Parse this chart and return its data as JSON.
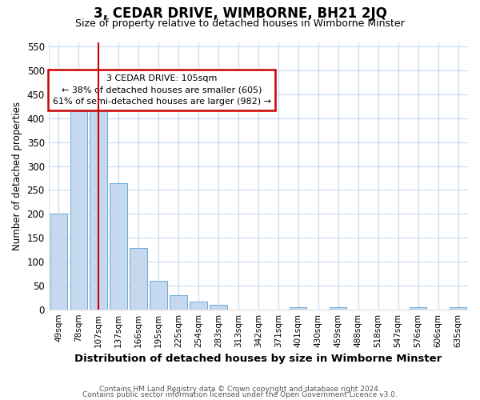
{
  "title": "3, CEDAR DRIVE, WIMBORNE, BH21 2JQ",
  "subtitle": "Size of property relative to detached houses in Wimborne Minster",
  "xlabel": "Distribution of detached houses by size in Wimborne Minster",
  "ylabel": "Number of detached properties",
  "footnote1": "Contains HM Land Registry data © Crown copyright and database right 2024.",
  "footnote2": "Contains public sector information licensed under the Open Government Licence v3.0.",
  "bin_labels": [
    "49sqm",
    "78sqm",
    "107sqm",
    "137sqm",
    "166sqm",
    "195sqm",
    "225sqm",
    "254sqm",
    "283sqm",
    "313sqm",
    "342sqm",
    "371sqm",
    "401sqm",
    "430sqm",
    "459sqm",
    "488sqm",
    "518sqm",
    "547sqm",
    "576sqm",
    "606sqm",
    "635sqm"
  ],
  "bar_heights": [
    200,
    452,
    435,
    265,
    128,
    60,
    30,
    16,
    9,
    0,
    0,
    0,
    5,
    0,
    4,
    0,
    0,
    0,
    5,
    0,
    5
  ],
  "bar_color": "#c5d8f0",
  "bar_edge_color": "#6baed6",
  "vline_x_label": "107sqm",
  "vline_color": "#cc0000",
  "annotation_text": "3 CEDAR DRIVE: 105sqm\n← 38% of detached houses are smaller (605)\n61% of semi-detached houses are larger (982) →",
  "annotation_box_color": "#ffffff",
  "annotation_box_edge": "#cc0000",
  "ylim": [
    0,
    560
  ],
  "yticks": [
    0,
    50,
    100,
    150,
    200,
    250,
    300,
    350,
    400,
    450,
    500,
    550
  ],
  "bg_color": "#ffffff",
  "grid_color": "#c5d8f0",
  "title_fontsize": 12,
  "subtitle_fontsize": 9
}
